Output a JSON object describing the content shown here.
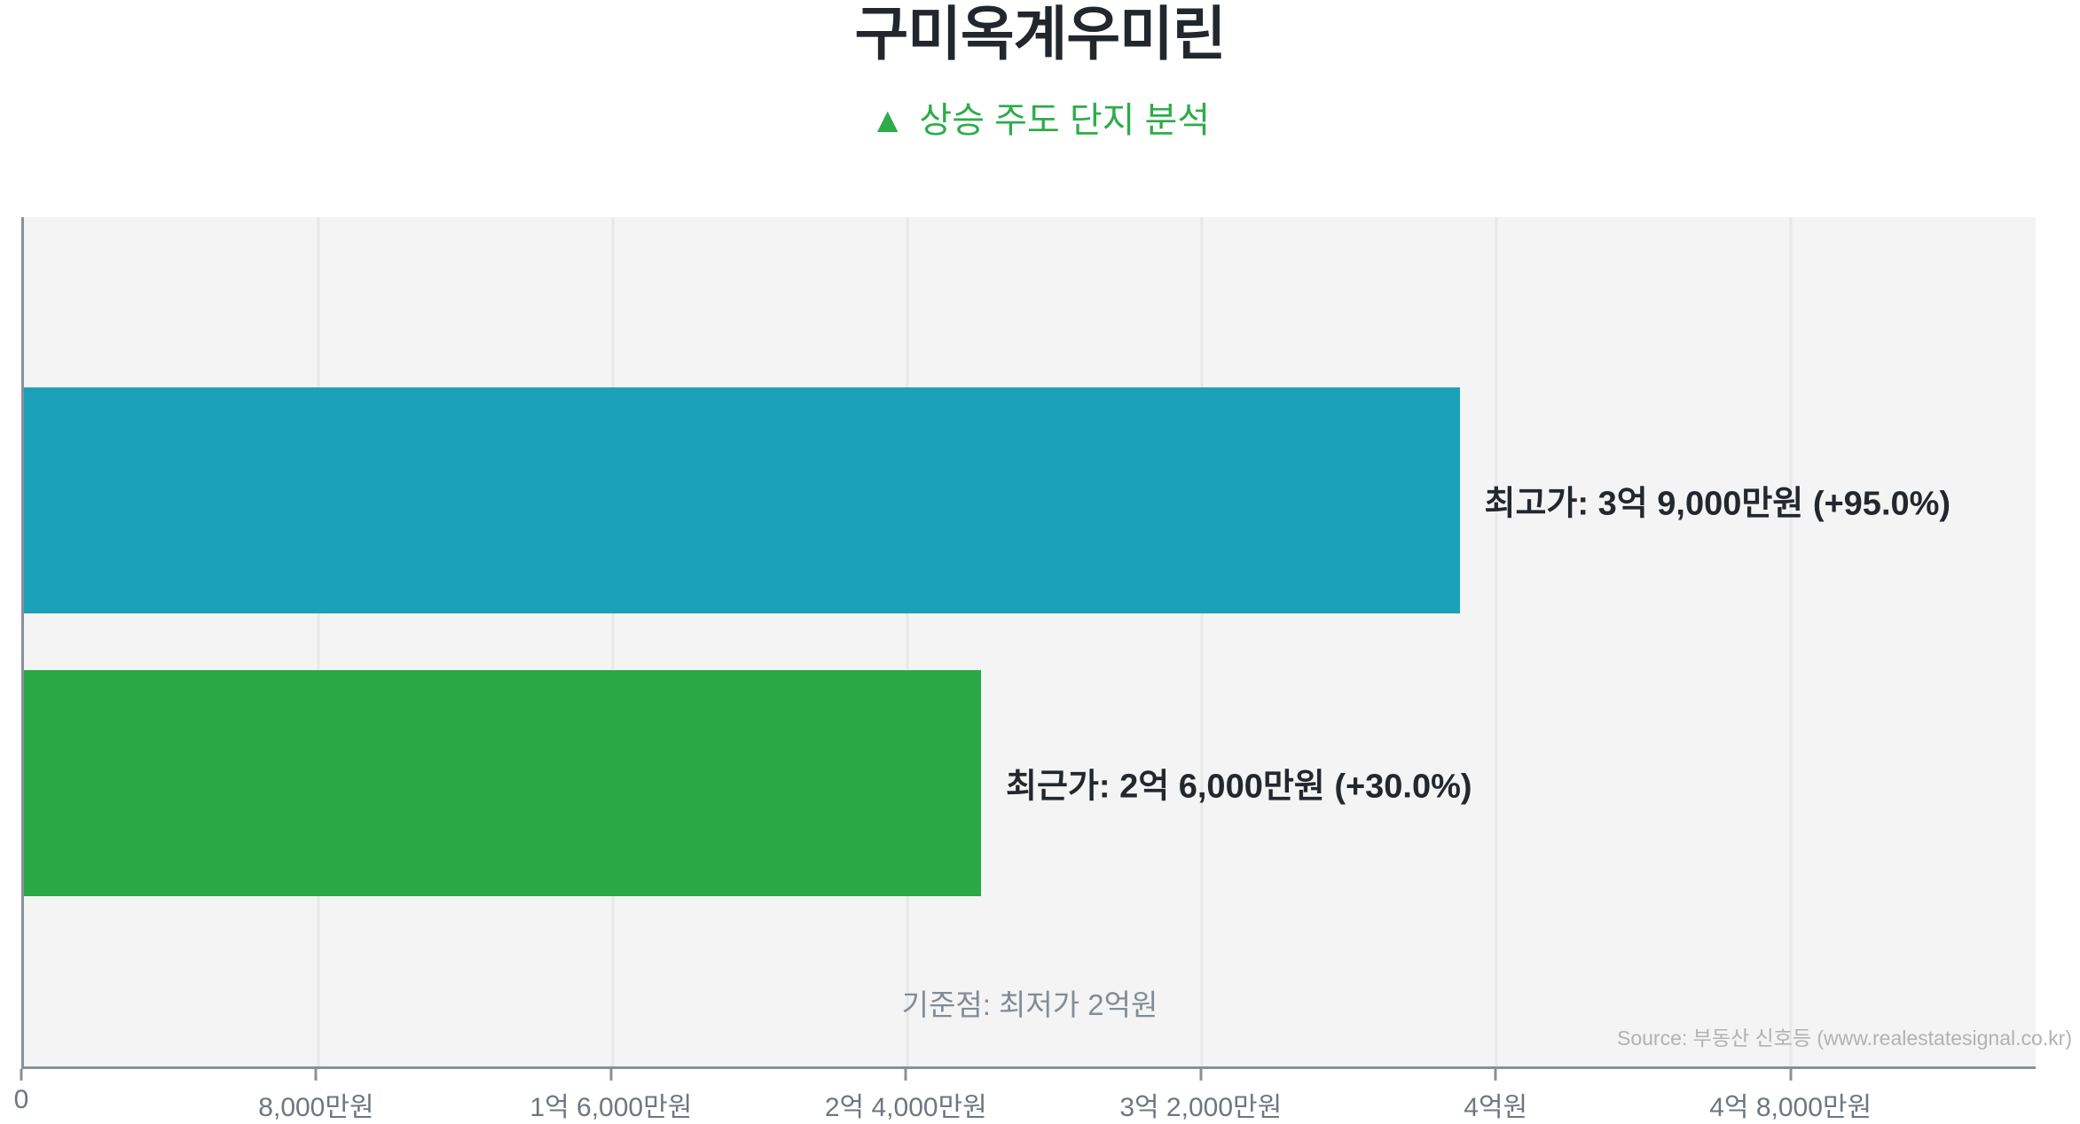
{
  "title": "구미옥계우미린",
  "subtitle": {
    "icon": "▲",
    "text": "상승 주도 단지 분석"
  },
  "source": "Source: 부동산 신호등 (www.realestatesignal.co.kr)",
  "colors": {
    "title_text": "#22262d",
    "subtitle_green": "#2eab4a",
    "bar_teal": "#1aa1b8",
    "bar_green": "#2aa845",
    "plot_background": "#f4f4f4",
    "gridline": "#e8e8e8",
    "axis_line": "#8a9099",
    "tick_text": "#6e7680",
    "bar_label_text": "#23272e",
    "annotation_text": "#828c96",
    "source_text": "#b2b2b2"
  },
  "chart_data": {
    "type": "bar",
    "orientation": "horizontal",
    "title": "구미옥계우미린",
    "subtitle": "▲ 상승 주도 단지 분석",
    "unit": "만원",
    "xlim": [
      0,
      54650
    ],
    "grid": true,
    "legend": "none",
    "bars": [
      {
        "name": "최고가",
        "label": "최고가: 3억 9,000만원 (+95.0%)",
        "value": 39000,
        "change_pct": 95.0,
        "color": "#1aa1b8"
      },
      {
        "name": "최근가",
        "label": "최근가: 2억 6,000만원 (+30.0%)",
        "value": 26000,
        "change_pct": 30.0,
        "color": "#2aa845"
      }
    ],
    "baseline": {
      "label": "기준점: 최저가 2억원",
      "value": 20000
    },
    "x_ticks": [
      {
        "value": 0,
        "label": "0"
      },
      {
        "value": 8000,
        "label": "8,000만원"
      },
      {
        "value": 16000,
        "label": "1억 6,000만원"
      },
      {
        "value": 24000,
        "label": "2억 4,000만원"
      },
      {
        "value": 32000,
        "label": "3억 2,000만원"
      },
      {
        "value": 40000,
        "label": "4억원"
      },
      {
        "value": 48000,
        "label": "4억 8,000만원"
      }
    ]
  }
}
